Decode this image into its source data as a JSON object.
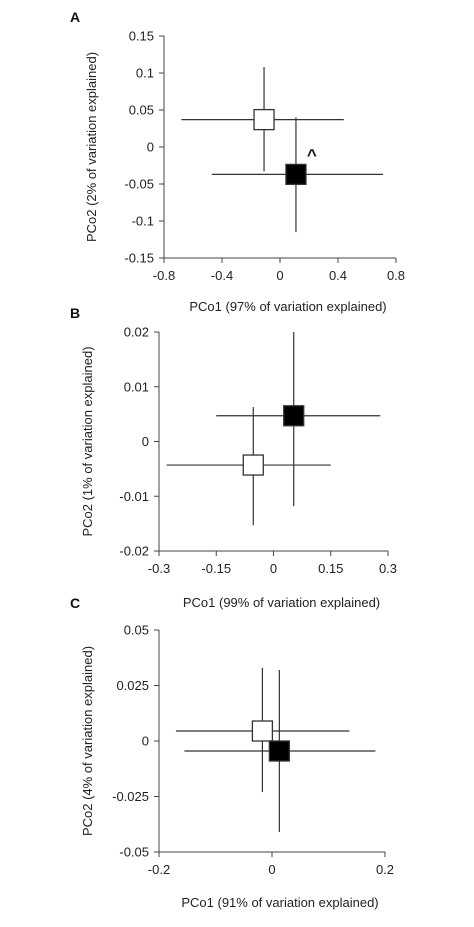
{
  "chart_data": [
    {
      "panel": "A",
      "type": "scatter",
      "xlabel": "PCo1 (97% of variation explained)",
      "ylabel": "PCo2 (2% of variation explained)",
      "xlim": [
        -0.8,
        0.8
      ],
      "ylim": [
        -0.15,
        0.15
      ],
      "x_ticks": [
        -0.8,
        -0.4,
        0,
        0.4,
        0.8
      ],
      "x_tick_labels": [
        "-0.8",
        "-0.4",
        "0",
        "0.4",
        "0.8"
      ],
      "y_ticks": [
        0.15,
        0.1,
        0.05,
        0,
        -0.05,
        -0.1,
        -0.15
      ],
      "y_tick_labels": [
        "0.15",
        "0.1",
        "0.05",
        "0",
        "-0.05",
        "-0.1",
        "-0.15"
      ],
      "grid": false,
      "legend": "none",
      "series": [
        {
          "fill": "#ffffff",
          "x": -0.11,
          "y": 0.037,
          "x_err_low": -0.68,
          "x_err_high": 0.44,
          "y_err_low": -0.033,
          "y_err_high": 0.108
        },
        {
          "fill": "#000000",
          "x": 0.11,
          "y": -0.037,
          "x_err_low": -0.47,
          "x_err_high": 0.71,
          "y_err_low": -0.115,
          "y_err_high": 0.04
        }
      ],
      "annotations": [
        {
          "text": "^",
          "x": 0.22,
          "y": -0.01
        }
      ]
    },
    {
      "panel": "B",
      "type": "scatter",
      "xlabel": "PCo1 (99% of variation explained)",
      "ylabel": "PCo2 (1% of variation explained)",
      "xlim": [
        -0.3,
        0.3
      ],
      "ylim": [
        -0.02,
        0.02
      ],
      "x_ticks": [
        -0.3,
        -0.15,
        0,
        0.15,
        0.3
      ],
      "x_tick_labels": [
        "-0.3",
        "-0.15",
        "0",
        "0.15",
        "0.3"
      ],
      "y_ticks": [
        0.02,
        0.01,
        0,
        -0.01,
        -0.02
      ],
      "y_tick_labels": [
        "0.02",
        "0.01",
        "0",
        "-0.01",
        "-0.02"
      ],
      "grid": false,
      "legend": "none",
      "series": [
        {
          "fill": "#ffffff",
          "x": -0.053,
          "y": -0.0043,
          "x_err_low": -0.28,
          "x_err_high": 0.15,
          "y_err_low": -0.0153,
          "y_err_high": 0.0063
        },
        {
          "fill": "#000000",
          "x": 0.053,
          "y": 0.0047,
          "x_err_low": -0.15,
          "x_err_high": 0.28,
          "y_err_low": -0.0118,
          "y_err_high": 0.02
        }
      ],
      "annotations": []
    },
    {
      "panel": "C",
      "type": "scatter",
      "xlabel": "PCo1 (91% of variation explained)",
      "ylabel": "PCo2 (4% of variation explained)",
      "xlim": [
        -0.2,
        0.2
      ],
      "ylim": [
        -0.05,
        0.05
      ],
      "x_ticks": [
        -0.2,
        0,
        0.2
      ],
      "x_tick_labels": [
        "-0.2",
        "0",
        "0.2"
      ],
      "y_ticks": [
        0.05,
        0.025,
        0,
        -0.025,
        -0.05
      ],
      "y_tick_labels": [
        "0.05",
        "0.025",
        "0",
        "-0.025",
        "-0.05"
      ],
      "grid": false,
      "legend": "none",
      "series": [
        {
          "fill": "#ffffff",
          "x": -0.017,
          "y": 0.0045,
          "x_err_low": -0.17,
          "x_err_high": 0.137,
          "y_err_low": -0.023,
          "y_err_high": 0.033
        },
        {
          "fill": "#000000",
          "x": 0.013,
          "y": -0.0045,
          "x_err_low": -0.155,
          "x_err_high": 0.183,
          "y_err_low": -0.041,
          "y_err_high": 0.032
        }
      ],
      "annotations": []
    }
  ]
}
